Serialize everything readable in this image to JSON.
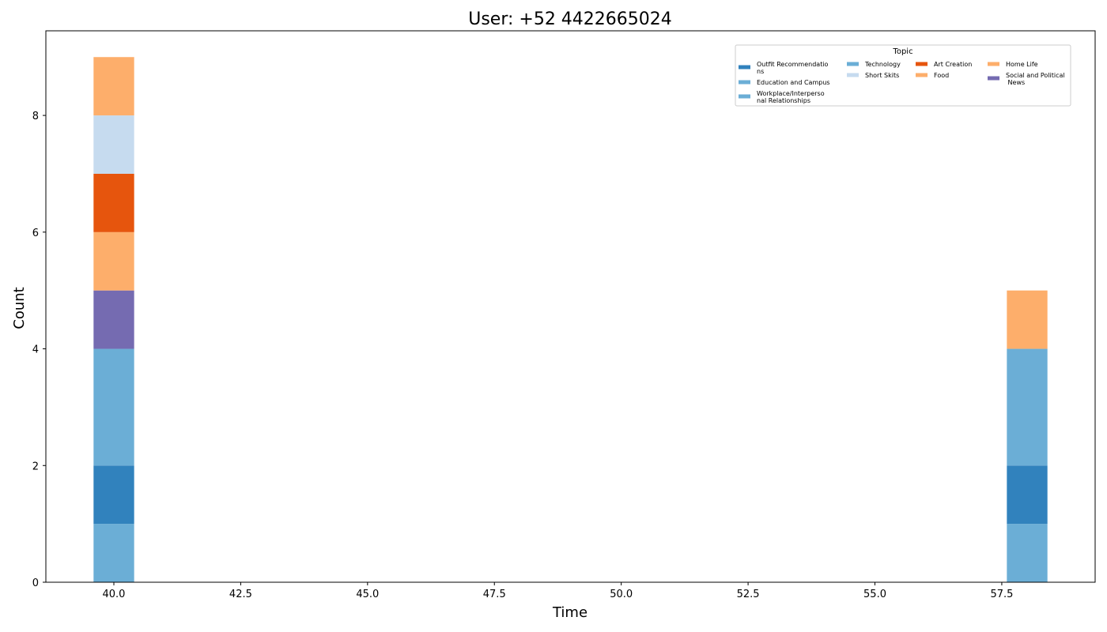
{
  "chart_data": {
    "type": "bar",
    "stacked": true,
    "title": "User: +52 4422665024",
    "xlabel": "Time",
    "ylabel": "Count",
    "xlim": [
      38.66,
      59.34
    ],
    "ylim": [
      0,
      9.45
    ],
    "bar_width": 0.8,
    "x_ticks": [
      "40.0",
      "42.5",
      "45.0",
      "47.5",
      "50.0",
      "52.5",
      "55.0",
      "57.5"
    ],
    "x_tick_values": [
      40.0,
      42.5,
      45.0,
      47.5,
      50.0,
      52.5,
      55.0,
      57.5
    ],
    "y_ticks": [
      "0",
      "2",
      "4",
      "6",
      "8"
    ],
    "y_tick_values": [
      0,
      2,
      4,
      6,
      8
    ],
    "categories": [
      40.0,
      58.0
    ],
    "series": [
      {
        "name": "Education and Campus",
        "color": "#6baed6",
        "segments": [
          {
            "x": 40.0,
            "bottom": 0,
            "top": 1
          },
          {
            "x": 58.0,
            "bottom": 0,
            "top": 1
          }
        ]
      },
      {
        "name": "Outfit Recommendations",
        "color": "#3182bd",
        "segments": [
          {
            "x": 40.0,
            "bottom": 1,
            "top": 2
          },
          {
            "x": 58.0,
            "bottom": 1,
            "top": 2
          }
        ]
      },
      {
        "name": "Workplace/Interpersonal Relationships",
        "color": "#6baed6",
        "segments": [
          {
            "x": 40.0,
            "bottom": 2,
            "top": 4
          },
          {
            "x": 58.0,
            "bottom": 2,
            "top": 4
          }
        ]
      },
      {
        "name": "Social and Political News",
        "color": "#756bb1",
        "segments": [
          {
            "x": 40.0,
            "bottom": 4,
            "top": 5
          }
        ]
      },
      {
        "name": "Food",
        "color": "#fdae6b",
        "segments": [
          {
            "x": 40.0,
            "bottom": 5,
            "top": 6
          }
        ]
      },
      {
        "name": "Art Creation",
        "color": "#e6550d",
        "segments": [
          {
            "x": 40.0,
            "bottom": 6,
            "top": 7
          }
        ]
      },
      {
        "name": "Short Skits",
        "color": "#c6dbef",
        "segments": [
          {
            "x": 40.0,
            "bottom": 7,
            "top": 8
          }
        ]
      },
      {
        "name": "Home Life",
        "color": "#fdae6b",
        "segments": [
          {
            "x": 40.0,
            "bottom": 8,
            "top": 9
          },
          {
            "x": 58.0,
            "bottom": 4,
            "top": 5
          }
        ]
      }
    ],
    "legend": {
      "title": "Topic",
      "position": "top-right",
      "columns": [
        [
          {
            "lines": [
              "Outfit Recommendatio",
              "ns"
            ],
            "color": "#3182bd"
          },
          {
            "lines": [
              "Education and Campus"
            ],
            "color": "#6baed6"
          },
          {
            "lines": [
              "Workplace/Interperso",
              "nal Relationships"
            ],
            "color": "#6baed6"
          }
        ],
        [
          {
            "lines": [
              "Technology"
            ],
            "color": "#6baed6"
          },
          {
            "lines": [
              "Short Skits"
            ],
            "color": "#c6dbef"
          }
        ],
        [
          {
            "lines": [
              "Art Creation"
            ],
            "color": "#e6550d"
          },
          {
            "lines": [
              "Food"
            ],
            "color": "#fdae6b"
          }
        ],
        [
          {
            "lines": [
              "Home Life"
            ],
            "color": "#fdae6b"
          },
          {
            "lines": [
              "Social and Political",
              " News"
            ],
            "color": "#756bb1"
          }
        ]
      ]
    },
    "grid": false
  }
}
